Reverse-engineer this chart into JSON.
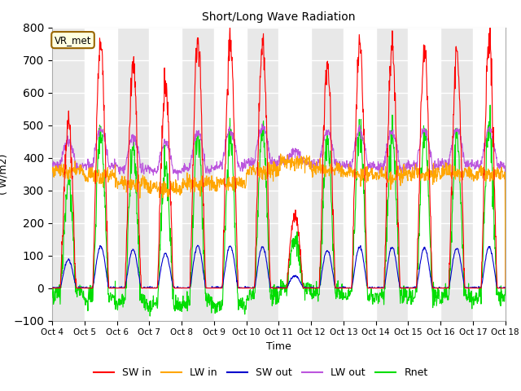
{
  "title": "Short/Long Wave Radiation",
  "xlabel": "Time",
  "ylabel": "( W/m2)",
  "ylim": [
    -100,
    800
  ],
  "yticks": [
    -100,
    0,
    100,
    200,
    300,
    400,
    500,
    600,
    700,
    800
  ],
  "xtick_labels": [
    "Oct 4",
    "Oct 5",
    "Oct 6",
    "Oct 7",
    "Oct 8",
    "Oct 9",
    "Oct 10",
    "Oct 11",
    "Oct 12",
    "Oct 13",
    "Oct 14",
    "Oct 15",
    "Oct 16",
    "Oct 17",
    "Oct 18"
  ],
  "station_label": "VR_met",
  "fig_bg_color": "#ffffff",
  "plot_bg_color": "#e8e8e8",
  "band_color": "#f5f5f5",
  "colors": {
    "SW_in": "#ff0000",
    "LW_in": "#ffa500",
    "SW_out": "#0000cc",
    "LW_out": "#bb55dd",
    "Rnet": "#00dd00"
  },
  "legend_labels": [
    "SW in",
    "LW in",
    "SW out",
    "LW out",
    "Rnet"
  ]
}
